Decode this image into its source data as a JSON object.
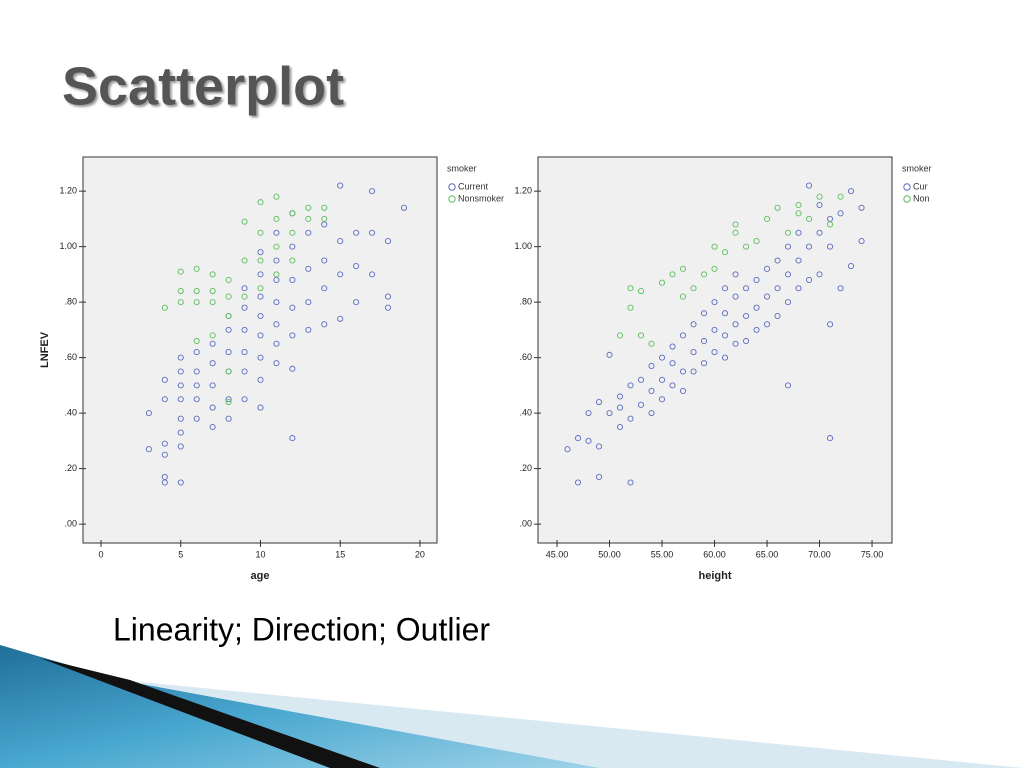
{
  "slide": {
    "title": "Scatterplot",
    "caption": "Linearity; Direction; Outlier"
  },
  "chart_data": [
    {
      "type": "scatter",
      "x_label": "age",
      "y_label": "LNFEV",
      "legend_title": "smoker",
      "legend": "right",
      "xlim": [
        -1.13,
        21.07
      ],
      "ylim": [
        -0.068,
        1.323
      ],
      "xticks": [
        0,
        5,
        10,
        15,
        20
      ],
      "yticks": [
        {
          "value": 0,
          "label": ".00"
        },
        {
          "value": 0.2,
          "label": ".20"
        },
        {
          "value": 0.4,
          "label": ".40"
        },
        {
          "value": 0.6,
          "label": ".60"
        },
        {
          "value": 0.8,
          "label": ".80"
        },
        {
          "value": 1.0,
          "label": "1.00"
        },
        {
          "value": 1.2,
          "label": "1.20"
        }
      ],
      "series": [
        {
          "name": "Current",
          "color": "#5a6cc0",
          "x": [
            3,
            3,
            4,
            4,
            4,
            4,
            4,
            4,
            5,
            5,
            5,
            5,
            5,
            5,
            5,
            5,
            6,
            6,
            6,
            6,
            6,
            7,
            7,
            7,
            7,
            7,
            8,
            8,
            8,
            8,
            8,
            8,
            9,
            9,
            9,
            9,
            9,
            9,
            10,
            10,
            10,
            10,
            10,
            10,
            10,
            10,
            11,
            11,
            11,
            11,
            11,
            11,
            11,
            12,
            12,
            12,
            12,
            12,
            12,
            12,
            13,
            13,
            13,
            13,
            14,
            14,
            14,
            14,
            15,
            15,
            15,
            15,
            16,
            16,
            16,
            17,
            17,
            17,
            18,
            18,
            18,
            19
          ],
          "values": [
            0.27,
            0.4,
            0.15,
            0.17,
            0.25,
            0.29,
            0.45,
            0.52,
            0.15,
            0.28,
            0.33,
            0.38,
            0.45,
            0.5,
            0.55,
            0.6,
            0.38,
            0.45,
            0.5,
            0.55,
            0.62,
            0.35,
            0.42,
            0.5,
            0.58,
            0.65,
            0.38,
            0.45,
            0.55,
            0.62,
            0.7,
            0.75,
            0.45,
            0.55,
            0.62,
            0.7,
            0.78,
            0.85,
            0.42,
            0.52,
            0.6,
            0.68,
            0.75,
            0.82,
            0.9,
            0.98,
            0.58,
            0.65,
            0.72,
            0.8,
            0.88,
            0.95,
            1.05,
            0.31,
            0.56,
            0.68,
            0.78,
            0.88,
            1.0,
            1.12,
            0.7,
            0.8,
            0.92,
            1.05,
            0.72,
            0.85,
            0.95,
            1.08,
            0.74,
            0.9,
            1.02,
            1.22,
            0.8,
            0.93,
            1.05,
            0.9,
            1.05,
            1.2,
            0.78,
            0.82,
            1.02,
            1.14
          ]
        },
        {
          "name": "Nonsmoker",
          "color": "#5cbf5c",
          "x": [
            4,
            5,
            5,
            5,
            6,
            6,
            6,
            6,
            7,
            7,
            7,
            7,
            8,
            8,
            8,
            8,
            8,
            9,
            9,
            9,
            10,
            10,
            10,
            10,
            11,
            11,
            11,
            11,
            12,
            12,
            12,
            13,
            13,
            14,
            14
          ],
          "values": [
            0.78,
            0.8,
            0.84,
            0.91,
            0.8,
            0.84,
            0.92,
            0.66,
            0.8,
            0.84,
            0.9,
            0.68,
            0.75,
            0.82,
            0.88,
            0.55,
            0.44,
            0.82,
            0.95,
            1.09,
            0.85,
            0.95,
            1.05,
            1.16,
            0.9,
            1.0,
            1.1,
            1.18,
            0.95,
            1.05,
            1.12,
            1.1,
            1.14,
            1.1,
            1.14
          ]
        }
      ]
    },
    {
      "type": "scatter",
      "x_label": "height",
      "legend_title": "smoker",
      "legend": "right",
      "xlim": [
        43.19,
        76.9
      ],
      "ylim": [
        -0.068,
        1.323
      ],
      "xticks": [
        {
          "value": 45,
          "label": "45.00"
        },
        {
          "value": 50,
          "label": "50.00"
        },
        {
          "value": 55,
          "label": "55.00"
        },
        {
          "value": 60,
          "label": "60.00"
        },
        {
          "value": 65,
          "label": "65.00"
        },
        {
          "value": 70,
          "label": "70.00"
        },
        {
          "value": 75,
          "label": "75.00"
        }
      ],
      "yticks": [
        {
          "value": 0,
          "label": ".00"
        },
        {
          "value": 0.2,
          "label": ".20"
        },
        {
          "value": 0.4,
          "label": ".40"
        },
        {
          "value": 0.6,
          "label": ".60"
        },
        {
          "value": 0.8,
          "label": ".80"
        },
        {
          "value": 1.0,
          "label": "1.00"
        },
        {
          "value": 1.2,
          "label": "1.20"
        }
      ],
      "series": [
        {
          "name": "Cur",
          "color": "#5a6cc0",
          "x": [
            46,
            47,
            47,
            48,
            48,
            49,
            49,
            49,
            50,
            50,
            51,
            51,
            51,
            52,
            52,
            52,
            53,
            53,
            54,
            54,
            54,
            55,
            55,
            55,
            56,
            56,
            56,
            57,
            57,
            57,
            58,
            58,
            58,
            59,
            59,
            59,
            60,
            60,
            60,
            61,
            61,
            61,
            61,
            62,
            62,
            62,
            62,
            63,
            63,
            63,
            64,
            64,
            64,
            65,
            65,
            65,
            66,
            66,
            66,
            67,
            67,
            67,
            67,
            68,
            68,
            68,
            69,
            69,
            69,
            70,
            70,
            70,
            71,
            71,
            71,
            71,
            72,
            72,
            73,
            73,
            74,
            74
          ],
          "values": [
            0.27,
            0.15,
            0.31,
            0.3,
            0.4,
            0.17,
            0.28,
            0.44,
            0.4,
            0.61,
            0.35,
            0.42,
            0.46,
            0.15,
            0.38,
            0.5,
            0.43,
            0.52,
            0.4,
            0.48,
            0.57,
            0.45,
            0.52,
            0.6,
            0.5,
            0.58,
            0.64,
            0.48,
            0.55,
            0.68,
            0.55,
            0.62,
            0.72,
            0.58,
            0.66,
            0.76,
            0.62,
            0.7,
            0.8,
            0.6,
            0.68,
            0.76,
            0.85,
            0.65,
            0.72,
            0.82,
            0.9,
            0.66,
            0.75,
            0.85,
            0.7,
            0.78,
            0.88,
            0.72,
            0.82,
            0.92,
            0.75,
            0.85,
            0.95,
            0.5,
            0.8,
            0.9,
            1.0,
            0.85,
            0.95,
            1.05,
            0.88,
            1.0,
            1.22,
            0.9,
            1.05,
            1.15,
            0.31,
            0.72,
            1.0,
            1.1,
            0.85,
            1.12,
            0.93,
            1.2,
            1.02,
            1.14
          ]
        },
        {
          "name": "Non",
          "color": "#5cbf5c",
          "x": [
            51,
            52,
            52,
            53,
            53,
            54,
            55,
            56,
            57,
            57,
            58,
            59,
            60,
            60,
            61,
            62,
            62,
            63,
            64,
            65,
            66,
            67,
            68,
            68,
            69,
            70,
            71,
            72
          ],
          "values": [
            0.68,
            0.78,
            0.85,
            0.68,
            0.84,
            0.65,
            0.87,
            0.9,
            0.82,
            0.92,
            0.85,
            0.9,
            0.92,
            1.0,
            0.98,
            1.05,
            1.08,
            1.0,
            1.02,
            1.1,
            1.14,
            1.05,
            1.12,
            1.15,
            1.1,
            1.18,
            1.08,
            1.18
          ]
        }
      ]
    }
  ]
}
